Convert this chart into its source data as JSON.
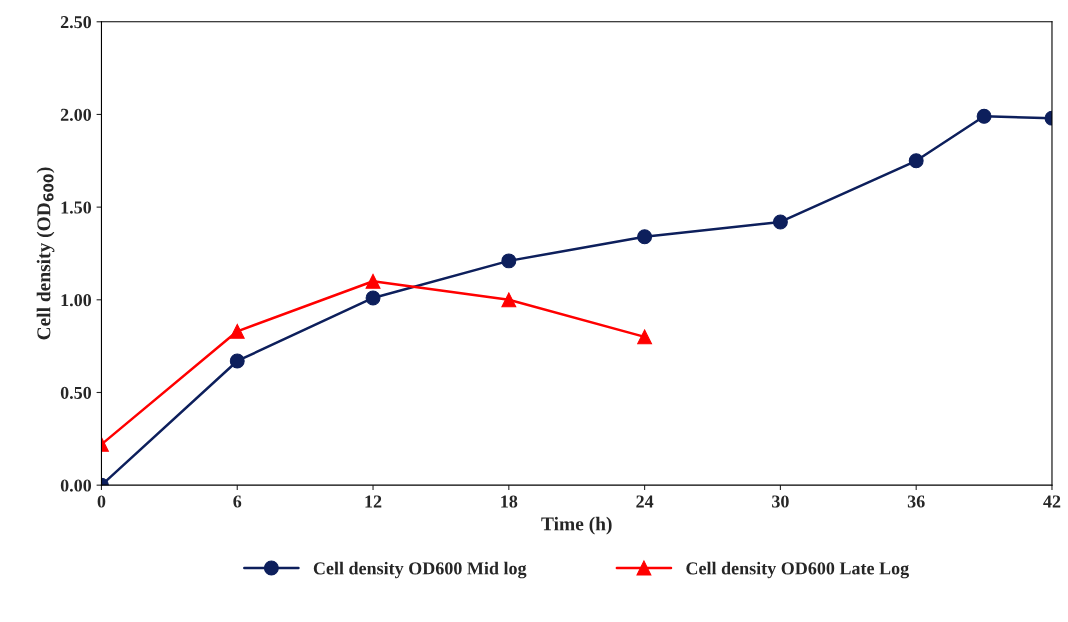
{
  "chart_data": {
    "type": "line",
    "xlabel": "Time (h)",
    "ylabel": "Cell density (OD$_{600}$)",
    "xlim": [
      0,
      42
    ],
    "xticks": [
      0,
      6,
      12,
      18,
      24,
      30,
      36,
      42
    ],
    "ylim": [
      0,
      2.5
    ],
    "yticks": [
      {
        "value": 0,
        "label": "0.00"
      },
      {
        "value": 0.5,
        "label": "0.50"
      },
      {
        "value": 1,
        "label": "1.00"
      },
      {
        "value": 1.5,
        "label": "1.50"
      },
      {
        "value": 2,
        "label": "2.00"
      },
      {
        "value": 2.5,
        "label": "2.50"
      }
    ],
    "grid": false,
    "legend": "bottom",
    "line_style": "solid",
    "series": [
      {
        "name": "Cell density OD600 Mid log",
        "color": "#0d1f5c",
        "marker": "circle",
        "x": [
          0,
          6,
          12,
          18,
          24,
          30,
          36,
          39,
          42
        ],
        "values": [
          0,
          0.67,
          1.01,
          1.21,
          1.34,
          1.42,
          1.75,
          1.99,
          1.98
        ]
      },
      {
        "name": "Cell density OD600 Late Log",
        "color": "#ff0000",
        "marker": "triangle",
        "x": [
          0,
          6,
          12,
          18,
          24
        ],
        "values": [
          0.22,
          0.83,
          1.1,
          1.0,
          0.8
        ]
      }
    ]
  }
}
